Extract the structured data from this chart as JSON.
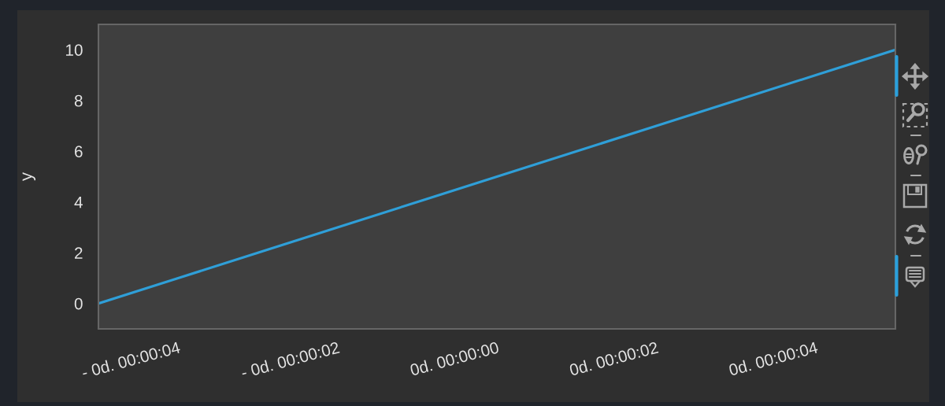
{
  "chart_data": {
    "type": "line",
    "categories": [
      null,
      "- 0d. 00:00:04",
      null,
      "- 0d. 00:00:02",
      null,
      "0d. 00:00:00",
      null,
      "0d. 00:00:02",
      null,
      "0d. 00:00:04",
      null
    ],
    "series": [
      {
        "color": "#2f9fd8",
        "values": [
          0,
          1,
          2,
          3,
          4,
          5,
          6,
          7,
          8,
          9,
          10
        ]
      }
    ],
    "ylim": [
      -1,
      11
    ],
    "yticks": [
      0,
      2,
      4,
      6,
      8,
      10
    ],
    "ylabel": "y"
  }
}
